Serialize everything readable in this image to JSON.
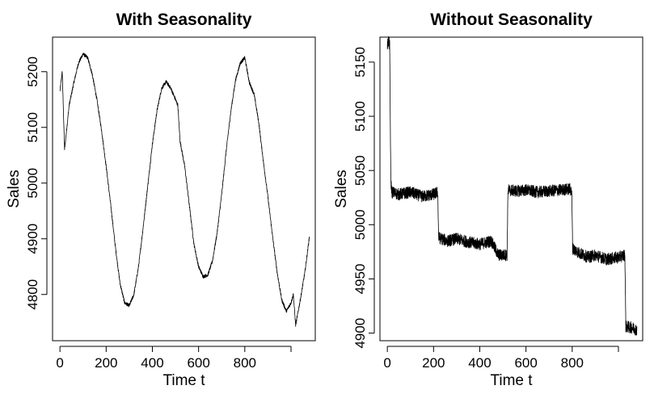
{
  "chart_data": [
    {
      "type": "line",
      "title": "With Seasonality",
      "xlabel": "Time t",
      "ylabel": "Sales",
      "xlim": [
        -32,
        1105
      ],
      "ylim": [
        4717,
        5262
      ],
      "x_ticks": [
        0,
        200,
        400,
        600,
        800,
        1000
      ],
      "x_tick_labels": [
        "0",
        "200",
        "400",
        "600",
        "800",
        ""
      ],
      "y_ticks": [
        4800,
        4900,
        5000,
        5100,
        5200
      ],
      "y_tick_labels": [
        "4800",
        "4900",
        "5000",
        "5100",
        "5200"
      ],
      "grid": false,
      "legend": "none",
      "series": [
        {
          "color": "#000000",
          "x": [
            0,
            10,
            20,
            40,
            60,
            80,
            100,
            120,
            140,
            160,
            180,
            200,
            220,
            240,
            260,
            280,
            300,
            320,
            340,
            360,
            380,
            400,
            420,
            440,
            460,
            480,
            500,
            510,
            520,
            540,
            560,
            580,
            600,
            620,
            640,
            660,
            680,
            700,
            720,
            740,
            760,
            780,
            800,
            820,
            840,
            860,
            880,
            900,
            920,
            940,
            960,
            980,
            1000,
            1010,
            1020,
            1040,
            1060,
            1080
          ],
          "y": [
            5165,
            5200,
            5060,
            5140,
            5180,
            5215,
            5232,
            5225,
            5195,
            5150,
            5095,
            5030,
            4960,
            4885,
            4820,
            4785,
            4780,
            4800,
            4850,
            4920,
            4995,
            5070,
            5130,
            5170,
            5182,
            5170,
            5150,
            5140,
            5075,
            5030,
            4960,
            4890,
            4850,
            4832,
            4835,
            4860,
            4910,
            4980,
            5060,
            5130,
            5185,
            5215,
            5225,
            5180,
            5160,
            5110,
            5040,
            4975,
            4905,
            4840,
            4790,
            4770,
            4785,
            4800,
            4745,
            4790,
            4840,
            4905
          ]
        }
      ]
    },
    {
      "type": "line",
      "title": "Without Seasonality",
      "xlabel": "Time t",
      "ylabel": "Sales",
      "xlim": [
        -32,
        1105
      ],
      "ylim": [
        4893,
        5173
      ],
      "x_ticks": [
        0,
        200,
        400,
        600,
        800,
        1000
      ],
      "x_tick_labels": [
        "0",
        "200",
        "400",
        "600",
        "800",
        ""
      ],
      "y_ticks": [
        4900,
        4950,
        5000,
        5050,
        5100,
        5150
      ],
      "y_tick_labels": [
        "4900",
        "4950",
        "5000",
        "5050",
        "5100",
        "5150"
      ],
      "grid": false,
      "legend": "none",
      "series": [
        {
          "color": "#000000",
          "x": [
            0,
            5,
            10,
            15,
            20,
            50,
            100,
            150,
            200,
            218,
            222,
            260,
            300,
            350,
            400,
            450,
            480,
            500,
            518,
            522,
            560,
            600,
            650,
            700,
            750,
            790,
            798,
            802,
            830,
            870,
            900,
            950,
            1000,
            1028,
            1032,
            1060,
            1080
          ],
          "y": [
            5165,
            5170,
            5165,
            5040,
            5030,
            5028,
            5030,
            5026,
            5028,
            5030,
            4988,
            4985,
            4987,
            4984,
            4982,
            4985,
            4972,
            4972,
            4972,
            5032,
            5031,
            5032,
            5030,
            5031,
            5032,
            5033,
            5030,
            4978,
            4974,
            4970,
            4972,
            4968,
            4970,
            4972,
            4906,
            4905,
            4903
          ]
        }
      ]
    }
  ]
}
